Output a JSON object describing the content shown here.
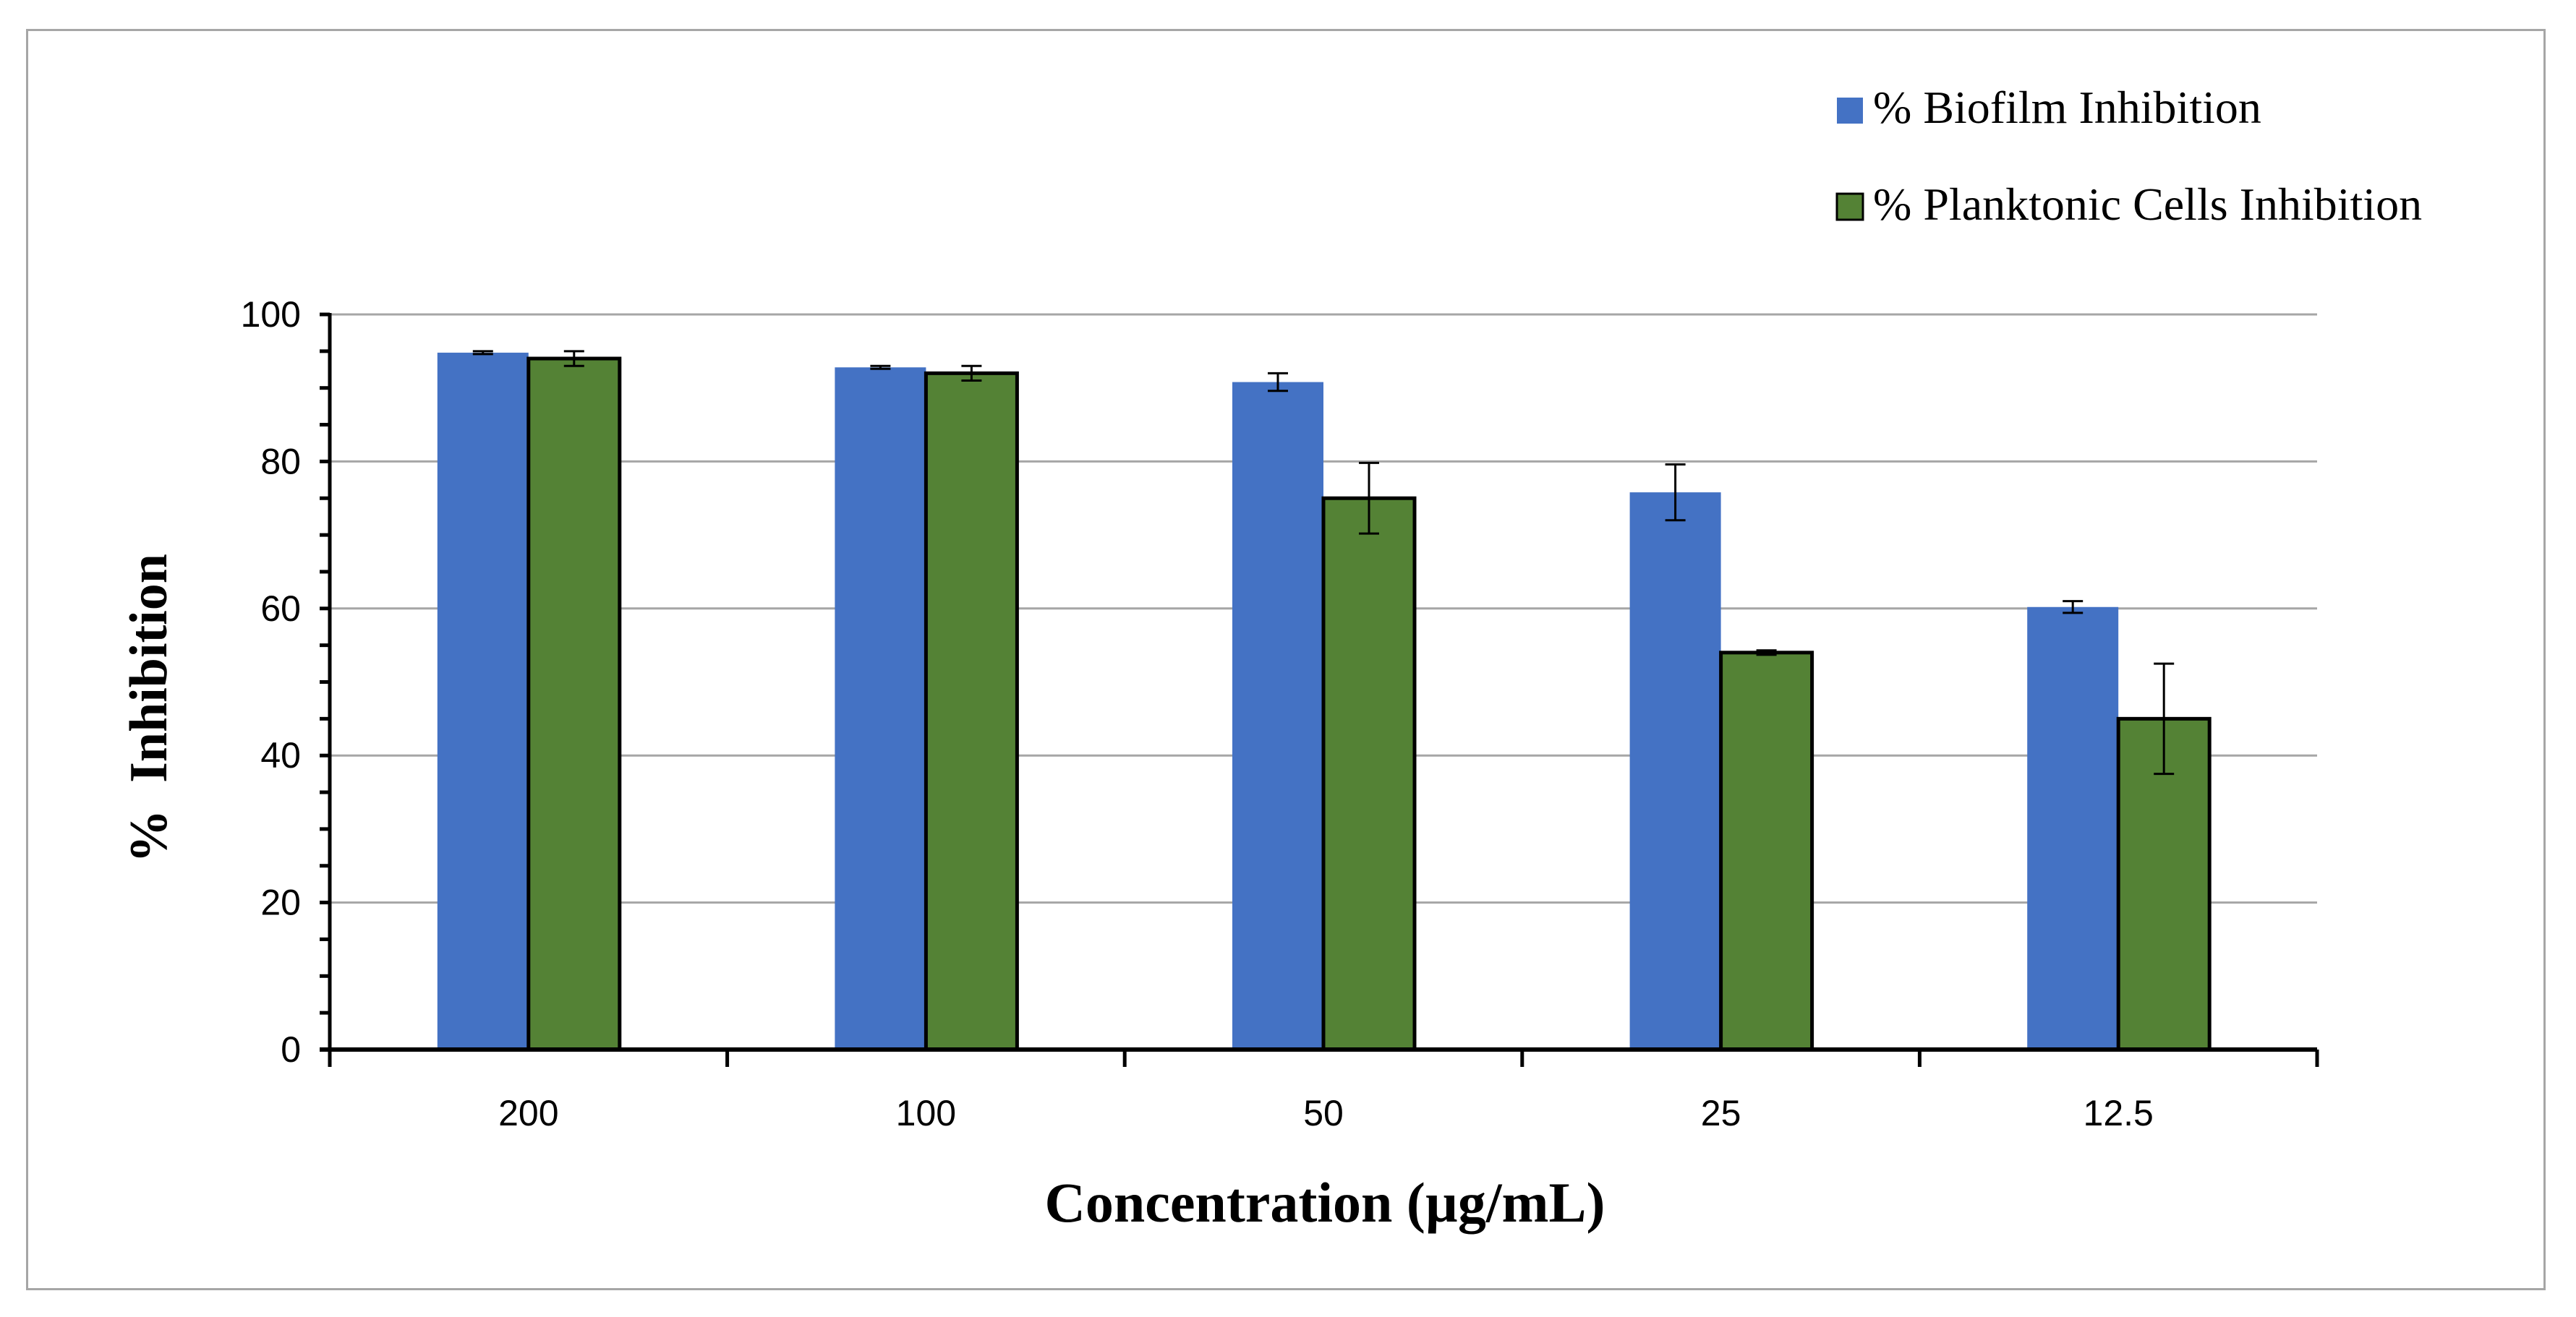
{
  "chart_data": {
    "type": "bar",
    "categories": [
      "200",
      "100",
      "50",
      "25",
      "12.5"
    ],
    "series": [
      {
        "name": "% Biofilm Inhibition",
        "color": "#4472c4",
        "values": [
          94.8,
          92.8,
          90.8,
          75.8,
          60.2
        ],
        "errors": [
          0.2,
          0.2,
          1.2,
          3.8,
          0.8
        ]
      },
      {
        "name": "% Planktonic Cells Inhibition",
        "color": "#548235",
        "values": [
          94.0,
          92.0,
          75.0,
          54.0,
          45.0
        ],
        "errors": [
          1.0,
          1.0,
          4.8,
          0.3,
          7.5
        ]
      }
    ],
    "title": "",
    "xlabel": "Concentration (µg/mL)",
    "ylabel": "%  Inhibition",
    "ylim": [
      0,
      100
    ],
    "ytick_step": 20,
    "yticks": [
      "0",
      "20",
      "40",
      "60",
      "80",
      "100"
    ],
    "grid": true,
    "legend_position": "top-right",
    "gridline_color": "#a6a6a6",
    "frame_color": "#a6a6a6"
  }
}
